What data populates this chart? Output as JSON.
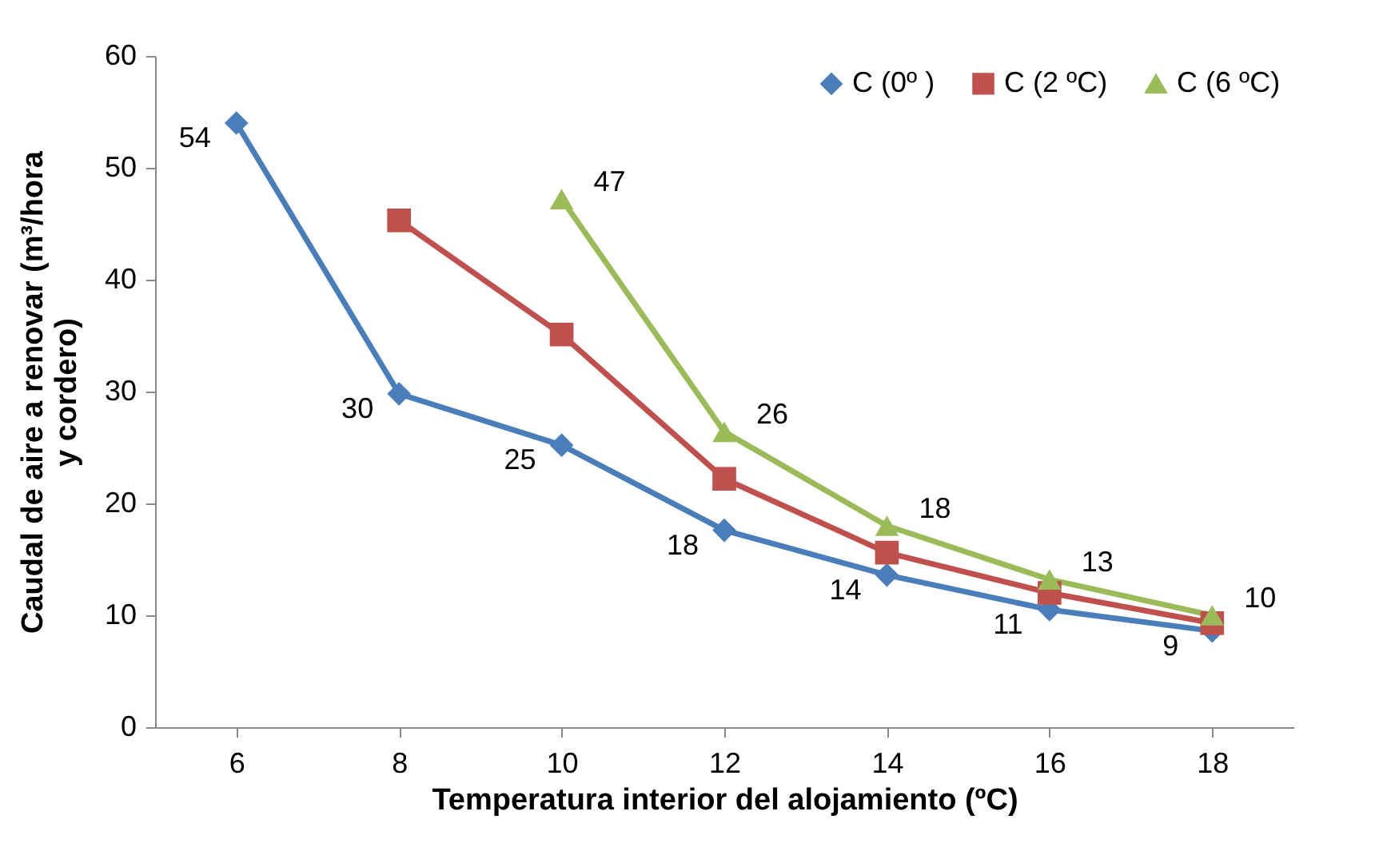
{
  "chart_data": {
    "type": "line",
    "xlabel": "Temperatura interior del alojamiento (ºC)",
    "ylabel": "Caudal de aire a renovar (m³/hora\ny cordero)",
    "categories": [
      "6",
      "8",
      "10",
      "12",
      "14",
      "16",
      "18"
    ],
    "ylim": [
      0,
      60
    ],
    "yticks": [
      0,
      10,
      20,
      30,
      40,
      50,
      60
    ],
    "grid": false,
    "legend": "top right",
    "series": [
      {
        "name": "C (0º )",
        "color": "#4a7ebb",
        "marker": "diamond",
        "values": [
          54,
          29.8,
          25.2,
          17.6,
          13.6,
          10.5,
          8.6
        ],
        "value_labels": [
          "54",
          "30",
          "25",
          "18",
          "14",
          "11",
          "9"
        ]
      },
      {
        "name": "C (2 ºC)",
        "color": "#c0504d",
        "marker": "square",
        "values": [
          null,
          45.3,
          35.1,
          22.2,
          15.6,
          12,
          9.3
        ]
      },
      {
        "name": "C (6 ºC)",
        "color": "#9bbb59",
        "marker": "triangle",
        "values": [
          null,
          null,
          47.2,
          26.4,
          18,
          13.2,
          10
        ],
        "value_labels": [
          null,
          null,
          "47",
          "26",
          "18",
          "13",
          "10"
        ]
      }
    ]
  }
}
